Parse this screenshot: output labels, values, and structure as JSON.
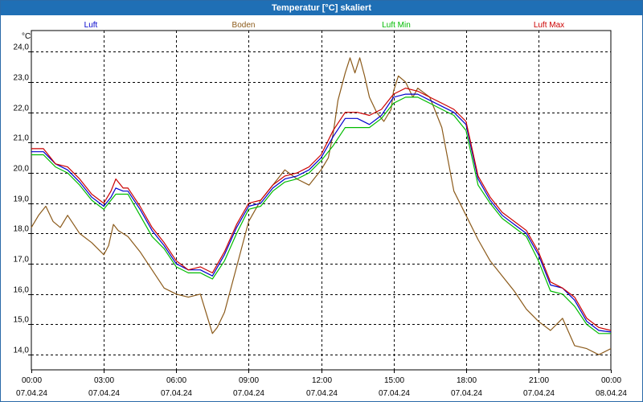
{
  "chart_data": {
    "type": "line",
    "title": "Temperatur [°C] skaliert",
    "ylabel": "°C",
    "ylim": [
      13.5,
      24.7
    ],
    "xlim": [
      0,
      24
    ],
    "grid": true,
    "legend_position": "top",
    "yticks": [
      14.0,
      15.0,
      16.0,
      17.0,
      18.0,
      19.0,
      20.0,
      21.0,
      22.0,
      23.0,
      24.0
    ],
    "ytick_labels": [
      "14,0",
      "15,0",
      "16,0",
      "17,0",
      "18,0",
      "19,0",
      "20,0",
      "21,0",
      "22,0",
      "23,0",
      "24,0"
    ],
    "xticks": [
      {
        "x": 0,
        "time": "00:00",
        "date": "07.04.24"
      },
      {
        "x": 3,
        "time": "03:00",
        "date": "07.04.24"
      },
      {
        "x": 6,
        "time": "06:00",
        "date": "07.04.24"
      },
      {
        "x": 9,
        "time": "09:00",
        "date": "07.04.24"
      },
      {
        "x": 12,
        "time": "12:00",
        "date": "07.04.24"
      },
      {
        "x": 15,
        "time": "15:00",
        "date": "07.04.24"
      },
      {
        "x": 18,
        "time": "18:00",
        "date": "07.04.24"
      },
      {
        "x": 21,
        "time": "21:00",
        "date": "07.04.24"
      },
      {
        "x": 24,
        "time": "00:00",
        "date": "08.04.24"
      }
    ],
    "series": [
      {
        "name": "Luft",
        "color": "#0000cc",
        "x": [
          0,
          0.5,
          1,
          1.5,
          2,
          2.5,
          3,
          3.3,
          3.5,
          3.8,
          4,
          4.5,
          5,
          5.5,
          6,
          6.5,
          7,
          7.5,
          8,
          8.5,
          9,
          9.5,
          10,
          10.5,
          11,
          11.5,
          12,
          12.5,
          13,
          13.5,
          14,
          14.5,
          15,
          15.5,
          16,
          16.5,
          17,
          17.5,
          18,
          18.5,
          19,
          19.5,
          20,
          20.5,
          21,
          21.5,
          22,
          22.5,
          23,
          23.5,
          24
        ],
        "y": [
          20.7,
          20.7,
          20.3,
          20.1,
          19.7,
          19.2,
          18.9,
          19.2,
          19.5,
          19.4,
          19.4,
          18.8,
          18.1,
          17.6,
          17.0,
          16.8,
          16.8,
          16.6,
          17.3,
          18.2,
          18.9,
          19.0,
          19.5,
          19.8,
          19.9,
          20.1,
          20.5,
          21.2,
          21.8,
          21.8,
          21.6,
          21.9,
          22.5,
          22.6,
          22.6,
          22.4,
          22.2,
          22.0,
          21.6,
          19.8,
          19.1,
          18.6,
          18.3,
          18.0,
          17.3,
          16.3,
          16.2,
          15.8,
          15.1,
          14.8,
          14.75
        ]
      },
      {
        "name": "Boden",
        "color": "#8b5a1a",
        "x": [
          0,
          0.3,
          0.6,
          0.9,
          1.2,
          1.5,
          2,
          2.5,
          3,
          3.2,
          3.4,
          3.6,
          4,
          4.5,
          5,
          5.5,
          6,
          6.5,
          7,
          7.5,
          7.7,
          8,
          8.5,
          9,
          9.5,
          10,
          10.5,
          11,
          11.5,
          12,
          12.3,
          12.5,
          12.7,
          13,
          13.2,
          13.4,
          13.6,
          13.8,
          14,
          14.3,
          14.6,
          14.9,
          15,
          15.2,
          15.5,
          15.8,
          16,
          16.5,
          17,
          17.5,
          18,
          18.5,
          19,
          19.5,
          20,
          20.5,
          21,
          21.5,
          22,
          22.5,
          23,
          23.5,
          24
        ],
        "y": [
          18.2,
          18.6,
          18.9,
          18.4,
          18.2,
          18.6,
          18.0,
          17.7,
          17.3,
          17.6,
          18.3,
          18.1,
          17.9,
          17.4,
          16.8,
          16.2,
          16.0,
          15.9,
          16.0,
          14.7,
          14.9,
          15.4,
          16.9,
          18.4,
          19.1,
          19.6,
          20.1,
          19.8,
          19.6,
          20.1,
          20.5,
          21.3,
          22.4,
          23.3,
          23.8,
          23.3,
          23.8,
          23.2,
          22.5,
          22.0,
          21.7,
          22.1,
          22.7,
          23.2,
          23.0,
          22.5,
          22.8,
          22.5,
          21.5,
          19.4,
          18.6,
          17.8,
          17.1,
          16.6,
          16.1,
          15.5,
          15.1,
          14.8,
          15.2,
          14.3,
          14.2,
          14.0,
          14.2
        ]
      },
      {
        "name": "Luft Min",
        "color": "#00bb00",
        "x": [
          0,
          0.5,
          1,
          1.5,
          2,
          2.5,
          3,
          3.3,
          3.5,
          3.8,
          4,
          4.5,
          5,
          5.5,
          6,
          6.5,
          7,
          7.5,
          8,
          8.5,
          9,
          9.5,
          10,
          10.5,
          11,
          11.5,
          12,
          12.5,
          13,
          13.5,
          14,
          14.5,
          15,
          15.5,
          16,
          16.5,
          17,
          17.5,
          18,
          18.5,
          19,
          19.5,
          20,
          20.5,
          21,
          21.5,
          22,
          22.5,
          23,
          23.5,
          24
        ],
        "y": [
          20.6,
          20.6,
          20.2,
          20.0,
          19.6,
          19.1,
          18.8,
          19.1,
          19.3,
          19.3,
          19.3,
          18.6,
          17.9,
          17.5,
          16.9,
          16.7,
          16.7,
          16.5,
          17.1,
          18.0,
          18.8,
          18.9,
          19.4,
          19.7,
          19.8,
          20.0,
          20.4,
          20.9,
          21.5,
          21.5,
          21.5,
          21.8,
          22.3,
          22.5,
          22.5,
          22.3,
          22.1,
          21.9,
          21.4,
          19.6,
          19.0,
          18.5,
          18.2,
          17.9,
          17.1,
          16.1,
          16.0,
          15.6,
          15.0,
          14.7,
          14.7
        ]
      },
      {
        "name": "Luft Max",
        "color": "#cc0000",
        "x": [
          0,
          0.5,
          1,
          1.5,
          2,
          2.5,
          3,
          3.3,
          3.5,
          3.8,
          4,
          4.5,
          5,
          5.5,
          6,
          6.5,
          7,
          7.5,
          8,
          8.5,
          9,
          9.5,
          10,
          10.5,
          11,
          11.5,
          12,
          12.5,
          13,
          13.5,
          14,
          14.5,
          15,
          15.5,
          16,
          16.5,
          17,
          17.5,
          18,
          18.5,
          19,
          19.5,
          20,
          20.5,
          21,
          21.5,
          22,
          22.5,
          23,
          23.5,
          24
        ],
        "y": [
          20.8,
          20.8,
          20.3,
          20.2,
          19.8,
          19.3,
          19.0,
          19.4,
          19.8,
          19.5,
          19.5,
          18.9,
          18.2,
          17.7,
          17.1,
          16.8,
          16.9,
          16.7,
          17.4,
          18.3,
          19.0,
          19.1,
          19.6,
          19.9,
          20.0,
          20.2,
          20.6,
          21.4,
          22.0,
          22.0,
          21.9,
          22.1,
          22.6,
          22.8,
          22.7,
          22.5,
          22.3,
          22.1,
          21.7,
          19.9,
          19.2,
          18.7,
          18.4,
          18.1,
          17.4,
          16.4,
          16.2,
          15.9,
          15.2,
          14.9,
          14.8
        ]
      }
    ]
  }
}
